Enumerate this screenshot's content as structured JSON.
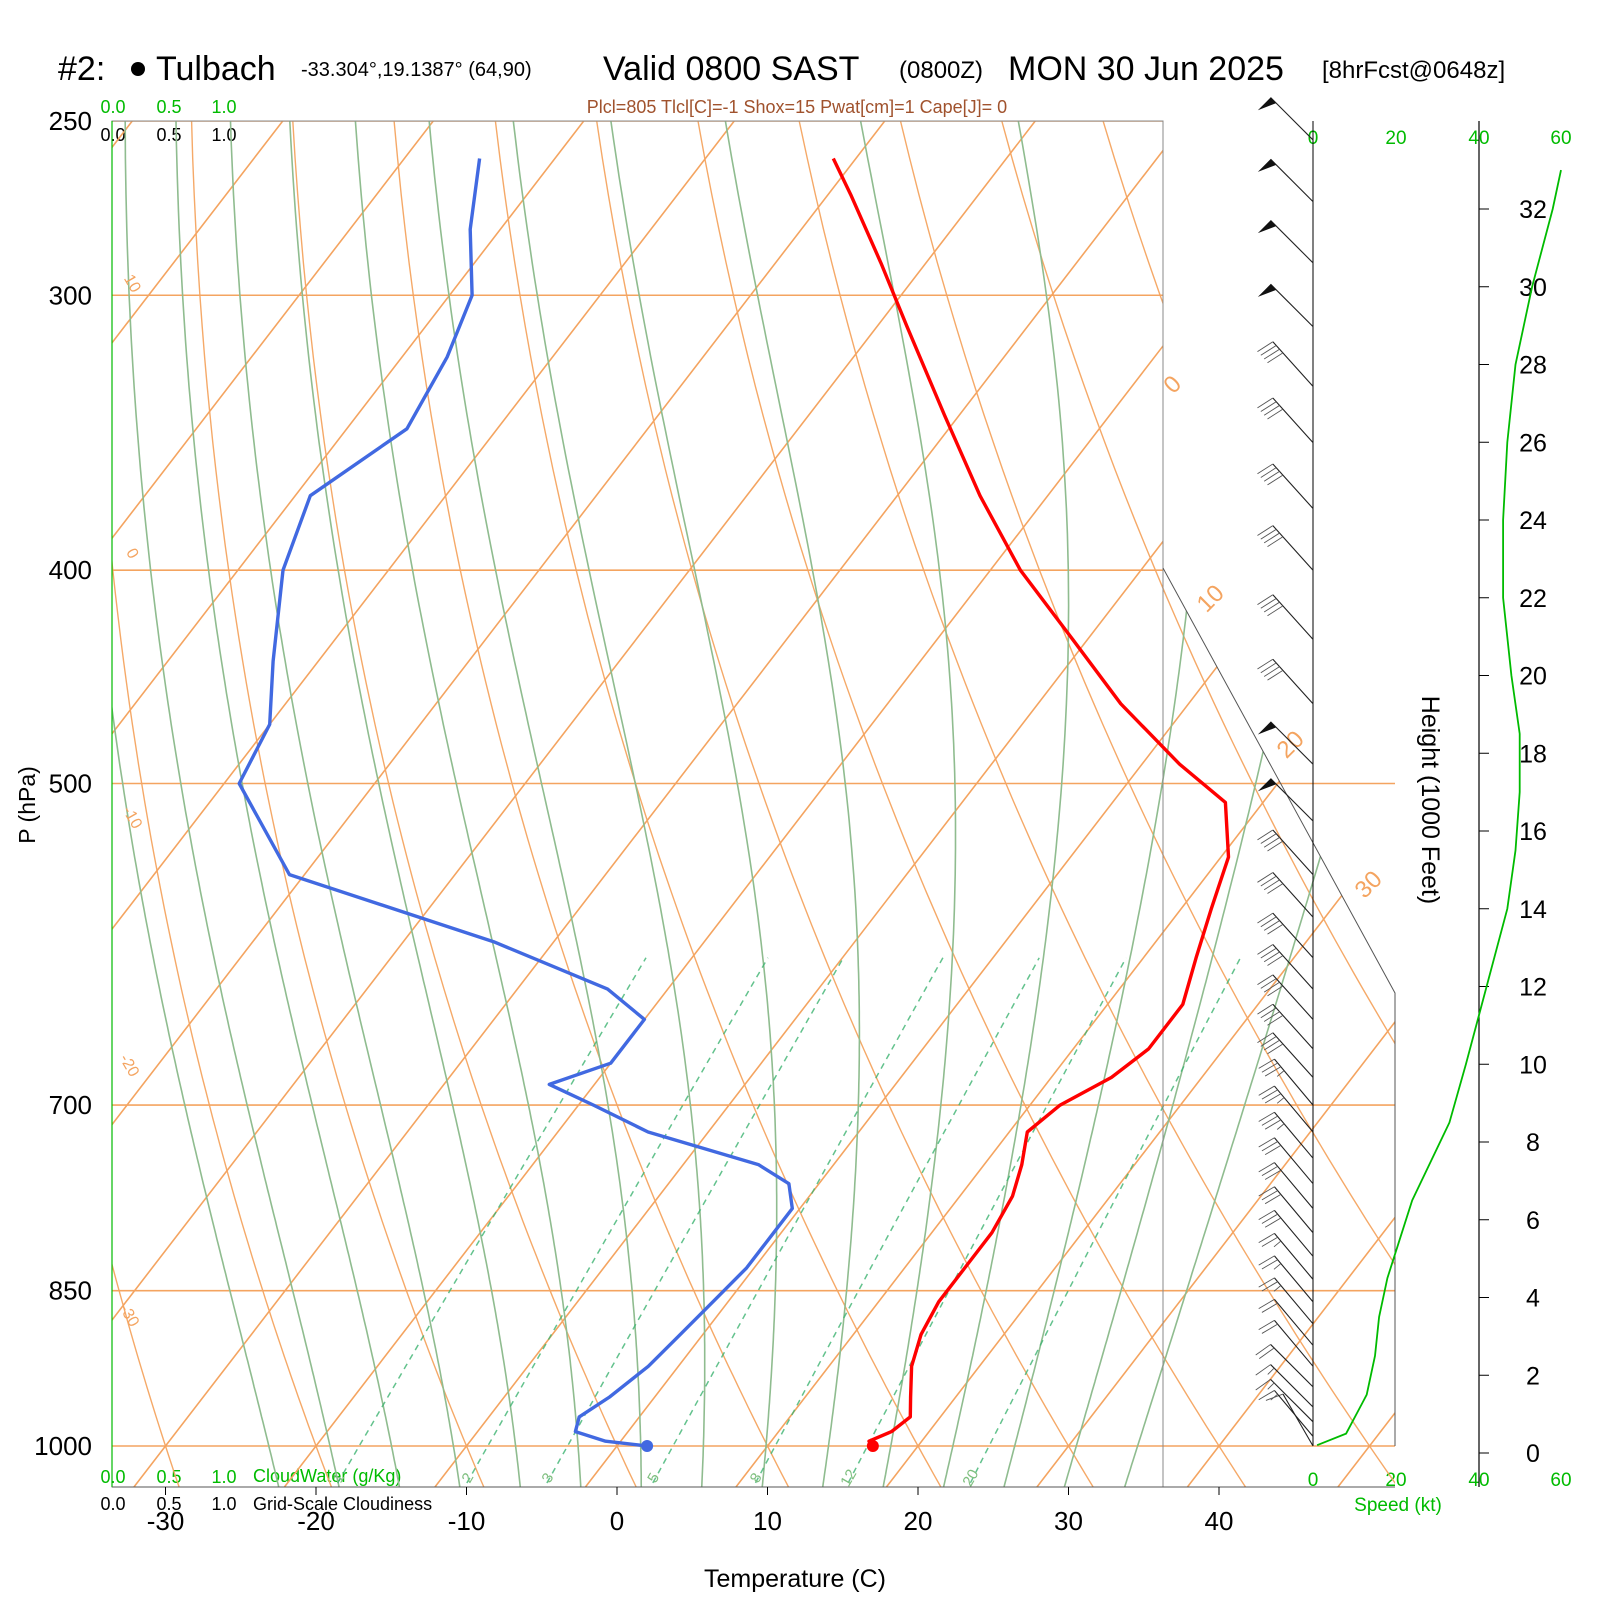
{
  "title": {
    "station_num": "#2:",
    "station_name": "Tulbach",
    "coords": "-33.304°,19.1387° (64,90)",
    "valid": "Valid 0800 SAST",
    "zulu": "(0800Z)",
    "date": "MON 30 Jun 2025",
    "fcst": "[8hrFcst@0648z]"
  },
  "params_line": "Plcl=805 Tlcl[C]=-1 Shox=15 Pwat[cm]=1 Cape[J]= 0",
  "colors": {
    "temperature": "#ff0000",
    "dewpoint": "#4169e1",
    "isotherm": "#f4a460",
    "dry_adiabat": "#8fbc8f",
    "mixing_ratio": "#3cb371",
    "wind_speed": "#00bb00",
    "params": "#a0522d"
  },
  "labels": {
    "pressure_axis": "P (hPa)",
    "temperature_axis": "Temperature (C)",
    "height_axis": "Height (1000 Feet)",
    "speed_axis": "Speed (kt)",
    "cloudwater": "CloudWater (g/Kg)",
    "cloudiness": "Grid-Scale Cloudiness"
  },
  "cloud_scale_ticks": [
    "0.0",
    "0.5",
    "1.0"
  ],
  "speed_ticks": [
    "0",
    "20",
    "40",
    "60"
  ],
  "chart_data": {
    "type": "line",
    "y_scale": "log-pressure",
    "pressure_ticks": [
      250,
      300,
      400,
      500,
      700,
      850,
      1000
    ],
    "temperature_ticks": [
      -30,
      -20,
      -10,
      0,
      10,
      20,
      30,
      40
    ],
    "height_ticks_kft": [
      0,
      2,
      4,
      6,
      8,
      10,
      12,
      14,
      16,
      18,
      20,
      22,
      24,
      26,
      28,
      30,
      32
    ],
    "isotherm_labels": [
      "10",
      "0",
      "-10",
      "-20",
      "-30",
      "0",
      "10",
      "20",
      "30"
    ],
    "mixing_ratio_labels": [
      "1",
      "2",
      "3",
      "5",
      "8",
      "12",
      "20"
    ],
    "series": [
      {
        "name": "Temperature",
        "points": [
          [
            1000,
            17.0
          ],
          [
            995,
            16.5
          ],
          [
            985,
            17.5
          ],
          [
            970,
            18.0
          ],
          [
            950,
            17.0
          ],
          [
            920,
            15.5
          ],
          [
            890,
            14.5
          ],
          [
            860,
            14.0
          ],
          [
            830,
            14.0
          ],
          [
            800,
            14.0
          ],
          [
            770,
            13.5
          ],
          [
            745,
            12.5
          ],
          [
            720,
            11.2
          ],
          [
            700,
            12.0
          ],
          [
            680,
            14.0
          ],
          [
            660,
            15.0
          ],
          [
            630,
            15.0
          ],
          [
            600,
            13.5
          ],
          [
            570,
            12.0
          ],
          [
            540,
            10.5
          ],
          [
            510,
            7.5
          ],
          [
            490,
            2.5
          ],
          [
            460,
            -4.5
          ],
          [
            430,
            -11.0
          ],
          [
            400,
            -18.0
          ],
          [
            370,
            -24.5
          ],
          [
            340,
            -31.0
          ],
          [
            310,
            -38.0
          ],
          [
            290,
            -43.0
          ],
          [
            270,
            -48.5
          ],
          [
            260,
            -51.5
          ]
        ]
      },
      {
        "name": "Dewpoint",
        "points": [
          [
            1000,
            2.0
          ],
          [
            995,
            -1.0
          ],
          [
            985,
            -3.5
          ],
          [
            970,
            -4.0
          ],
          [
            950,
            -3.0
          ],
          [
            920,
            -2.0
          ],
          [
            890,
            -1.5
          ],
          [
            860,
            -1.0
          ],
          [
            830,
            -0.5
          ],
          [
            800,
            -0.5
          ],
          [
            780,
            -0.5
          ],
          [
            760,
            -2.0
          ],
          [
            745,
            -5.0
          ],
          [
            720,
            -14.0
          ],
          [
            700,
            -19.0
          ],
          [
            685,
            -23.0
          ],
          [
            670,
            -20.0
          ],
          [
            640,
            -20.0
          ],
          [
            620,
            -24.0
          ],
          [
            590,
            -34.0
          ],
          [
            550,
            -51.0
          ],
          [
            500,
            -59.0
          ],
          [
            470,
            -60.0
          ],
          [
            440,
            -63.0
          ],
          [
            400,
            -67.0
          ],
          [
            370,
            -69.0
          ],
          [
            345,
            -66.0
          ],
          [
            320,
            -67.0
          ],
          [
            300,
            -68.5
          ],
          [
            280,
            -72.0
          ],
          [
            260,
            -75.0
          ]
        ]
      }
    ],
    "wind_speed_profile": {
      "x_range": [
        0,
        60
      ],
      "points": [
        [
          0.2,
          1
        ],
        [
          0.5,
          8
        ],
        [
          1.3,
          12
        ],
        [
          1.5,
          13
        ],
        [
          2.5,
          15
        ],
        [
          3.5,
          16
        ],
        [
          4.5,
          18
        ],
        [
          5.5,
          21
        ],
        [
          6.5,
          24
        ],
        [
          8.5,
          33
        ],
        [
          10,
          37
        ],
        [
          12,
          42
        ],
        [
          14,
          47
        ],
        [
          15.5,
          49
        ],
        [
          17,
          50
        ],
        [
          18.5,
          50
        ],
        [
          20,
          48
        ],
        [
          22,
          46
        ],
        [
          24,
          46
        ],
        [
          26,
          47
        ],
        [
          28,
          49
        ],
        [
          30,
          53
        ],
        [
          32,
          58
        ],
        [
          33,
          60
        ]
      ]
    },
    "wind_barbs": [
      {
        "pressure": 1000,
        "direction_deg": 330,
        "speed_kt": 12
      },
      {
        "pressure": 990,
        "direction_deg": 320,
        "speed_kt": 15
      },
      {
        "pressure": 975,
        "direction_deg": 315,
        "speed_kt": 18
      },
      {
        "pressure": 960,
        "direction_deg": 315,
        "speed_kt": 18
      },
      {
        "pressure": 940,
        "direction_deg": 315,
        "speed_kt": 20
      },
      {
        "pressure": 920,
        "direction_deg": 320,
        "speed_kt": 20
      },
      {
        "pressure": 900,
        "direction_deg": 320,
        "speed_kt": 22
      },
      {
        "pressure": 880,
        "direction_deg": 320,
        "speed_kt": 25
      },
      {
        "pressure": 860,
        "direction_deg": 320,
        "speed_kt": 25
      },
      {
        "pressure": 840,
        "direction_deg": 320,
        "speed_kt": 28
      },
      {
        "pressure": 820,
        "direction_deg": 320,
        "speed_kt": 30
      },
      {
        "pressure": 800,
        "direction_deg": 320,
        "speed_kt": 30
      },
      {
        "pressure": 780,
        "direction_deg": 320,
        "speed_kt": 32
      },
      {
        "pressure": 760,
        "direction_deg": 320,
        "speed_kt": 32
      },
      {
        "pressure": 740,
        "direction_deg": 320,
        "speed_kt": 35
      },
      {
        "pressure": 720,
        "direction_deg": 320,
        "speed_kt": 35
      },
      {
        "pressure": 700,
        "direction_deg": 320,
        "speed_kt": 38
      },
      {
        "pressure": 680,
        "direction_deg": 318,
        "speed_kt": 40
      },
      {
        "pressure": 660,
        "direction_deg": 318,
        "speed_kt": 40
      },
      {
        "pressure": 640,
        "direction_deg": 318,
        "speed_kt": 40
      },
      {
        "pressure": 620,
        "direction_deg": 318,
        "speed_kt": 40
      },
      {
        "pressure": 600,
        "direction_deg": 318,
        "speed_kt": 40
      },
      {
        "pressure": 575,
        "direction_deg": 318,
        "speed_kt": 40
      },
      {
        "pressure": 550,
        "direction_deg": 318,
        "speed_kt": 40
      },
      {
        "pressure": 520,
        "direction_deg": 315,
        "speed_kt": 50
      },
      {
        "pressure": 490,
        "direction_deg": 315,
        "speed_kt": 50
      },
      {
        "pressure": 460,
        "direction_deg": 318,
        "speed_kt": 40
      },
      {
        "pressure": 430,
        "direction_deg": 318,
        "speed_kt": 40
      },
      {
        "pressure": 400,
        "direction_deg": 318,
        "speed_kt": 40
      },
      {
        "pressure": 375,
        "direction_deg": 318,
        "speed_kt": 40
      },
      {
        "pressure": 350,
        "direction_deg": 318,
        "speed_kt": 40
      },
      {
        "pressure": 330,
        "direction_deg": 318,
        "speed_kt": 40
      },
      {
        "pressure": 310,
        "direction_deg": 315,
        "speed_kt": 50
      },
      {
        "pressure": 290,
        "direction_deg": 315,
        "speed_kt": 50
      },
      {
        "pressure": 272,
        "direction_deg": 315,
        "speed_kt": 50
      },
      {
        "pressure": 255,
        "direction_deg": 315,
        "speed_kt": 50
      }
    ]
  }
}
